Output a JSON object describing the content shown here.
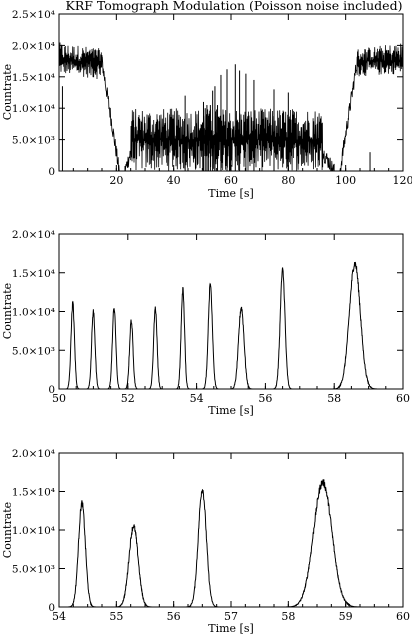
{
  "figure": {
    "title": "KRF Tomograph Modulation (Poisson noise included)",
    "line_color": "#000000",
    "background": "#ffffff"
  },
  "chart_data": [
    {
      "type": "line",
      "title": "KRF Tomograph Modulation (Poisson noise included)",
      "xlabel": "Time [s]",
      "ylabel": "Countrate",
      "xlim": [
        0,
        120
      ],
      "ylim": [
        0,
        25000
      ],
      "x_ticks": [
        20,
        40,
        60,
        80,
        100,
        120
      ],
      "x_tick_labels": [
        "20",
        "40",
        "60",
        "80",
        "100",
        "120"
      ],
      "y_ticks": [
        0,
        5000,
        10000,
        15000,
        20000,
        25000
      ],
      "y_tick_labels": [
        "0",
        "5.0×10³",
        "1.0×10⁴",
        "1.5×10⁴",
        "2.0×10⁴",
        "2.5×10⁴"
      ],
      "grid": false,
      "series": [
        {
          "segments": [
            {
              "kind": "noise_band",
              "x": [
                0,
                15
              ],
              "y_low": [
                15500,
                14500
              ],
              "y_high": [
                20500,
                19500
              ],
              "mean": 17500
            },
            {
              "kind": "ramp",
              "x": [
                15,
                21
              ],
              "y_start": 17500,
              "y_end": 0
            },
            {
              "kind": "zero",
              "x": [
                21,
                23
              ],
              "y": 0
            },
            {
              "kind": "ramp",
              "x": [
                23,
                25
              ],
              "y_start": 0,
              "y_end": 3000
            },
            {
              "kind": "noise_band",
              "x": [
                25,
                92
              ],
              "y_low": [
                0,
                0
              ],
              "y_high": [
                10000,
                10000
              ],
              "mean": 5000
            },
            {
              "kind": "ramp",
              "x": [
                92,
                96
              ],
              "y_start": 3000,
              "y_end": 0
            },
            {
              "kind": "zero",
              "x": [
                96,
                98
              ],
              "y": 0
            },
            {
              "kind": "ramp",
              "x": [
                98,
                104
              ],
              "y_start": 0,
              "y_end": 17500
            },
            {
              "kind": "noise_band",
              "x": [
                104,
                120
              ],
              "y_low": [
                15000,
                15500
              ],
              "y_high": [
                19500,
                20500
              ],
              "mean": 17500
            }
          ],
          "spikes": [
            {
              "x": 1.2,
              "y": 13500
            },
            {
              "x": 50.4,
              "y": 11000
            },
            {
              "x": 51.0,
              "y": 10000
            },
            {
              "x": 51.6,
              "y": 10500
            },
            {
              "x": 52.1,
              "y": 8800
            },
            {
              "x": 52.8,
              "y": 10500
            },
            {
              "x": 53.6,
              "y": 12800
            },
            {
              "x": 54.4,
              "y": 13500
            },
            {
              "x": 55.3,
              "y": 10500
            },
            {
              "x": 56.5,
              "y": 15300
            },
            {
              "x": 58.6,
              "y": 16200
            },
            {
              "x": 61.5,
              "y": 17000
            },
            {
              "x": 63.0,
              "y": 16000
            },
            {
              "x": 65.2,
              "y": 15500
            },
            {
              "x": 68.0,
              "y": 14500
            },
            {
              "x": 44.0,
              "y": 12000
            },
            {
              "x": 75.0,
              "y": 13000
            },
            {
              "x": 80.0,
              "y": 12500
            },
            {
              "x": 108.5,
              "y": 3000
            }
          ]
        }
      ]
    },
    {
      "type": "line",
      "xlabel": "Time [s]",
      "ylabel": "Countrate",
      "xlim": [
        50,
        60
      ],
      "ylim": [
        0,
        20000
      ],
      "x_ticks": [
        50,
        52,
        54,
        56,
        58,
        60
      ],
      "x_tick_labels": [
        "50",
        "52",
        "54",
        "56",
        "58",
        "60"
      ],
      "y_ticks": [
        0,
        5000,
        10000,
        15000,
        20000
      ],
      "y_tick_labels": [
        "0",
        "5.0×10³",
        "1.0×10⁴",
        "1.5×10⁴",
        "2.0×10⁴"
      ],
      "grid": false,
      "series": [
        {
          "peaks": [
            {
              "x": 50.4,
              "height": 11000,
              "width": 0.05
            },
            {
              "x": 51.0,
              "height": 10000,
              "width": 0.05
            },
            {
              "x": 51.6,
              "height": 10500,
              "width": 0.05
            },
            {
              "x": 52.1,
              "height": 8800,
              "width": 0.05
            },
            {
              "x": 52.8,
              "height": 10500,
              "width": 0.05
            },
            {
              "x": 53.6,
              "height": 12800,
              "width": 0.05
            },
            {
              "x": 54.4,
              "height": 13500,
              "width": 0.06
            },
            {
              "x": 55.3,
              "height": 10500,
              "width": 0.08
            },
            {
              "x": 56.5,
              "height": 15300,
              "width": 0.07
            },
            {
              "x": 58.6,
              "height": 16200,
              "width": 0.16
            }
          ]
        }
      ]
    },
    {
      "type": "line",
      "xlabel": "Time [s]",
      "ylabel": "Countrate",
      "xlim": [
        54,
        60
      ],
      "ylim": [
        0,
        20000
      ],
      "x_ticks": [
        54,
        55,
        56,
        57,
        58,
        59,
        60
      ],
      "x_tick_labels": [
        "54",
        "55",
        "56",
        "57",
        "58",
        "59",
        "60"
      ],
      "y_ticks": [
        0,
        5000,
        10000,
        15000,
        20000
      ],
      "y_tick_labels": [
        "0",
        "5.0×10³",
        "1.0×10⁴",
        "1.5×10⁴",
        "2.0×10⁴"
      ],
      "grid": false,
      "series": [
        {
          "peaks": [
            {
              "x": 54.4,
              "height": 13500,
              "width": 0.06
            },
            {
              "x": 55.3,
              "height": 10500,
              "width": 0.08
            },
            {
              "x": 56.5,
              "height": 15300,
              "width": 0.07
            },
            {
              "x": 58.6,
              "height": 16200,
              "width": 0.16
            }
          ]
        }
      ]
    }
  ]
}
